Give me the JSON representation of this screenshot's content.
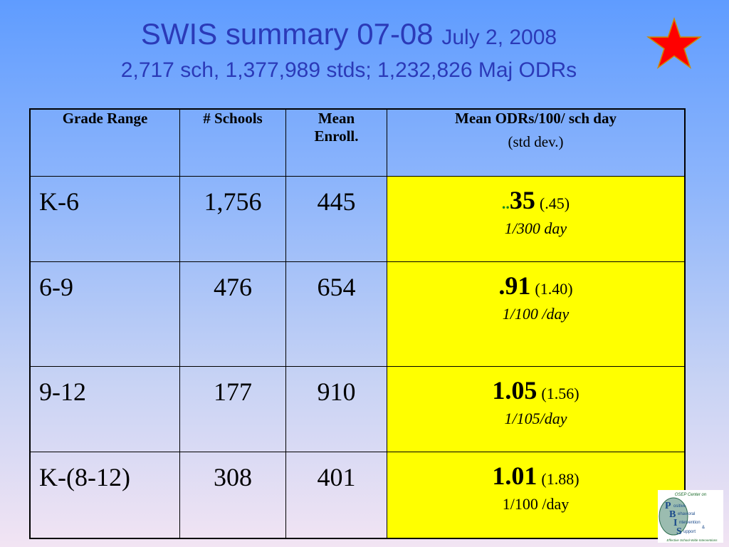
{
  "title": {
    "main": "SWIS summary 07-08",
    "date": "July 2, 2008",
    "subtitle": "2,717 sch, 1,377,989 stds; 1,232,826 Maj ODRs"
  },
  "table": {
    "headers": {
      "grade_range": "Grade Range",
      "schools": "# Schools",
      "enroll_line1": "Mean",
      "enroll_line2": "Enroll.",
      "odr_main": "Mean ODRs/100/ sch day",
      "odr_sub": "(std dev.)"
    },
    "rows": [
      {
        "grade": "K-6",
        "schools": "1,756",
        "enroll": "445",
        "prefix": "..",
        "mean": "35",
        "std": "(.45)",
        "rate": "1/300 day"
      },
      {
        "grade": "6-9",
        "schools": "476",
        "enroll": "654",
        "prefix": "",
        "mean": ".91",
        "std": "(1.40)",
        "rate": "1/100 /day"
      },
      {
        "grade": "9-12",
        "schools": "177",
        "enroll": "910",
        "prefix": "",
        "mean": "1.05",
        "std": "(1.56)",
        "rate": "1/105/day"
      },
      {
        "grade": "K-(8-12)",
        "schools": "308",
        "enroll": "401",
        "prefix": "",
        "mean": "1.01",
        "std": "(1.88)",
        "rate": "1/100 /day"
      }
    ]
  },
  "colors": {
    "highlight": "#ffff00",
    "title": "#2b3ab8",
    "star": "#ff0000"
  },
  "icons": {
    "star": "star-icon",
    "logo": "pbis-logo"
  },
  "logo": {
    "top": "OSEP Center on",
    "p": "ositive",
    "b": "ehavioral",
    "i": "ntervention",
    "amp": "&",
    "s": "upport",
    "tagline": "Effective School-Wide Interventions"
  }
}
